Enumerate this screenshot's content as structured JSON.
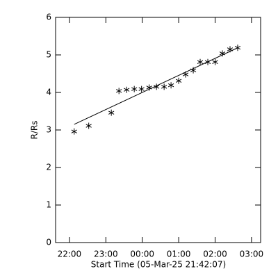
{
  "chart_data": {
    "type": "scatter",
    "xlabel": "Start Time (05-Mar-25 21:42:07)",
    "ylabel": "R/Rs",
    "x": [
      22.13,
      22.53,
      23.15,
      23.36,
      23.57,
      23.78,
      23.98,
      24.19,
      24.39,
      24.6,
      24.79,
      25.0,
      25.19,
      25.4,
      25.59,
      25.8,
      26.0,
      26.2,
      26.41,
      26.62
    ],
    "values": [
      2.96,
      3.11,
      3.46,
      4.04,
      4.07,
      4.09,
      4.09,
      4.13,
      4.15,
      4.15,
      4.19,
      4.31,
      4.48,
      4.59,
      4.81,
      4.81,
      4.81,
      5.04,
      5.15,
      5.19
    ],
    "color": "#000000",
    "fit": {
      "x": [
        22.13,
        26.62
      ],
      "values": [
        3.15,
        5.19
      ]
    },
    "xlim": [
      21.62,
      27.25
    ],
    "xticks": [
      {
        "value": 22,
        "label": "22:00"
      },
      {
        "value": 23,
        "label": "23:00"
      },
      {
        "value": 24,
        "label": "00:00"
      },
      {
        "value": 25,
        "label": "01:00"
      },
      {
        "value": 26,
        "label": "02:00"
      },
      {
        "value": 27,
        "label": "03:00"
      }
    ],
    "ylim": [
      0,
      6
    ],
    "yticks": [
      0,
      1,
      2,
      3,
      4,
      5,
      6
    ]
  }
}
